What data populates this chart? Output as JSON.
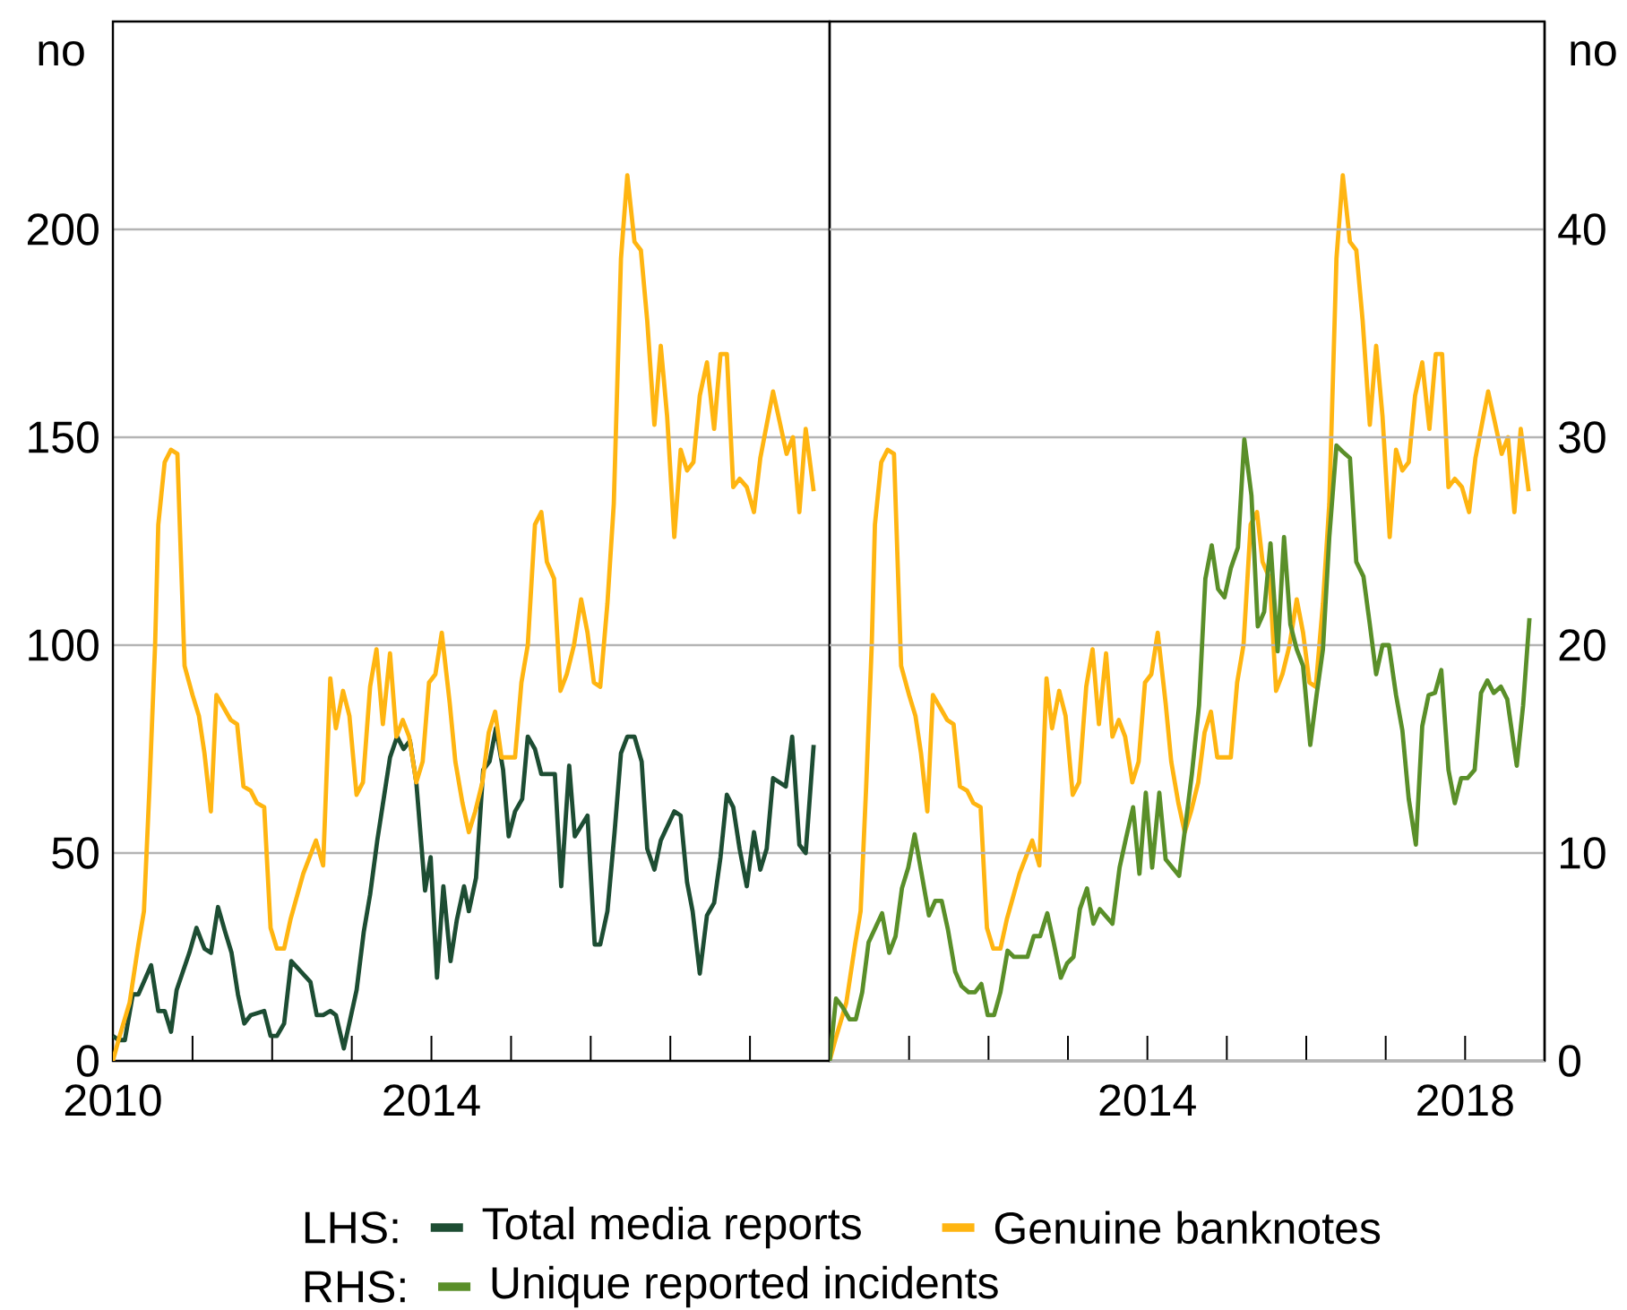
{
  "chart_data": [
    {
      "type": "line",
      "ylabel": "no",
      "legend_title": "LHS:",
      "legend": "bottom",
      "grid": "y",
      "xlim": [
        2010,
        2019
      ],
      "ylim": [
        0,
        250
      ],
      "yticks": [
        0,
        50,
        100,
        150,
        200
      ],
      "xticks": [
        2010,
        {
          "value": 2011,
          "label": null
        },
        {
          "value": 2012,
          "label": null
        },
        {
          "value": 2013,
          "label": null
        },
        2014,
        {
          "value": 2015,
          "label": null
        },
        {
          "value": 2016,
          "label": null
        },
        {
          "value": 2017,
          "label": null
        },
        {
          "value": 2018,
          "label": null
        }
      ],
      "series": [
        {
          "name": "Total media reports",
          "color": "#1d4d33",
          "x": [
            2010.0,
            2010.07,
            2010.15,
            2010.25,
            2010.32,
            2010.48,
            2010.57,
            2010.65,
            2010.73,
            2010.8,
            2010.96,
            2011.05,
            2011.15,
            2011.23,
            2011.32,
            2011.41,
            2011.49,
            2011.57,
            2011.65,
            2011.73,
            2011.9,
            2011.98,
            2012.06,
            2012.15,
            2012.24,
            2012.48,
            2012.56,
            2012.64,
            2012.73,
            2012.8,
            2012.9,
            2012.98,
            2013.06,
            2013.15,
            2013.23,
            2013.32,
            2013.4,
            2013.48,
            2013.57,
            2013.65,
            2013.73,
            2013.81,
            2013.92,
            2013.99,
            2014.07,
            2014.15,
            2014.24,
            2014.32,
            2014.41,
            2014.47,
            2014.56,
            2014.65,
            2014.73,
            2014.81,
            2014.9,
            2014.97,
            2015.05,
            2015.14,
            2015.21,
            2015.3,
            2015.38,
            2015.55,
            2015.63,
            2015.73,
            2015.8,
            2015.96,
            2016.05,
            2016.12,
            2016.21,
            2016.3,
            2016.38,
            2016.46,
            2016.55,
            2016.64,
            2016.71,
            2016.8,
            2016.88,
            2017.05,
            2017.13,
            2017.21,
            2017.28,
            2017.37,
            2017.46,
            2017.55,
            2017.63,
            2017.71,
            2017.79,
            2017.87,
            2017.96,
            2018.05,
            2018.13,
            2018.21,
            2018.29,
            2018.45,
            2018.53,
            2018.62,
            2018.7,
            2018.8
          ],
          "values": [
            6,
            5,
            5,
            16,
            16,
            23,
            12,
            12,
            7,
            17,
            26,
            32,
            27,
            26,
            37,
            31,
            26,
            16,
            9,
            11,
            12,
            6,
            6,
            9,
            24,
            19,
            11,
            11,
            12,
            11,
            3,
            10,
            17,
            31,
            40,
            53,
            63,
            73,
            78,
            75,
            77,
            67,
            41,
            49,
            20,
            42,
            24,
            34,
            42,
            36,
            44,
            70,
            72,
            80,
            70,
            54,
            60,
            63,
            78,
            75,
            69,
            69,
            42,
            71,
            54,
            59,
            28,
            28,
            36,
            55,
            74,
            78,
            78,
            72,
            51,
            46,
            53,
            60,
            59,
            43,
            36,
            21,
            35,
            38,
            49,
            64,
            61,
            51,
            42,
            55,
            46,
            51,
            68,
            66,
            78,
            52,
            50,
            76
          ]
        },
        {
          "name": "Genuine banknotes",
          "color": "#ffb511",
          "x": [
            2010.0,
            2010.07,
            2010.21,
            2010.32,
            2010.39,
            2010.46,
            2010.53,
            2010.57,
            2010.65,
            2010.73,
            2010.81,
            2010.9,
            2011.0,
            2011.08,
            2011.15,
            2011.23,
            2011.3,
            2011.39,
            2011.48,
            2011.56,
            2011.64,
            2011.73,
            2011.81,
            2011.9,
            2011.98,
            2012.06,
            2012.15,
            2012.23,
            2012.39,
            2012.55,
            2012.64,
            2012.73,
            2012.8,
            2012.89,
            2012.97,
            2013.06,
            2013.14,
            2013.23,
            2013.31,
            2013.39,
            2013.48,
            2013.56,
            2013.64,
            2013.72,
            2013.81,
            2013.89,
            2013.97,
            2014.05,
            2014.13,
            2014.23,
            2014.3,
            2014.39,
            2014.47,
            2014.55,
            2014.64,
            2014.72,
            2014.8,
            2014.88,
            2014.96,
            2015.05,
            2015.13,
            2015.21,
            2015.3,
            2015.38,
            2015.45,
            2015.54,
            2015.62,
            2015.7,
            2015.79,
            2015.88,
            2015.96,
            2016.04,
            2016.12,
            2016.21,
            2016.29,
            2016.38,
            2016.46,
            2016.55,
            2016.63,
            2016.71,
            2016.8,
            2016.88,
            2016.96,
            2017.05,
            2017.13,
            2017.21,
            2017.29,
            2017.37,
            2017.46,
            2017.55,
            2017.63,
            2017.71,
            2017.79,
            2017.87,
            2017.96,
            2018.05,
            2018.13,
            2018.21,
            2018.29,
            2018.37,
            2018.46,
            2018.54,
            2018.62,
            2018.7,
            2018.8
          ],
          "values": [
            0,
            5,
            14,
            28,
            36,
            66,
            100,
            129,
            144,
            147,
            146,
            95,
            88,
            83,
            74,
            60,
            88,
            85,
            82,
            81,
            66,
            65,
            62,
            61,
            32,
            27,
            27,
            34,
            45,
            53,
            47,
            92,
            80,
            89,
            83,
            64,
            67,
            90,
            99,
            81,
            98,
            78,
            82,
            78,
            67,
            72,
            91,
            93,
            103,
            86,
            72,
            62,
            55,
            60,
            67,
            79,
            84,
            73,
            73,
            73,
            91,
            100,
            129,
            132,
            120,
            116,
            89,
            93,
            100,
            111,
            103,
            91,
            90,
            110,
            134,
            193,
            213,
            197,
            195,
            178,
            153,
            172,
            155,
            126,
            147,
            142,
            144,
            160,
            168,
            152,
            170,
            170,
            138,
            140,
            138,
            132,
            145,
            153,
            161,
            154,
            146,
            150,
            132,
            152,
            137
          ]
        }
      ]
    },
    {
      "type": "line",
      "y2label": "no",
      "legend_title": "RHS:",
      "legend": "bottom",
      "grid": "y",
      "xlim": [
        2010,
        2019
      ],
      "ylim": [
        0,
        250
      ],
      "y2lim": [
        0,
        50
      ],
      "y2ticks": [
        0,
        10,
        20,
        30,
        40
      ],
      "xticks": [
        {
          "value": 2010,
          "label": null
        },
        {
          "value": 2011,
          "label": null
        },
        {
          "value": 2012,
          "label": null
        },
        {
          "value": 2013,
          "label": null
        },
        2014,
        {
          "value": 2015,
          "label": null
        },
        {
          "value": 2016,
          "label": null
        },
        {
          "value": 2017,
          "label": null
        },
        2018
      ],
      "series": [
        {
          "color": "#ffb511",
          "x": [
            2010.0,
            2010.07,
            2010.21,
            2010.32,
            2010.39,
            2010.46,
            2010.53,
            2010.57,
            2010.65,
            2010.73,
            2010.81,
            2010.9,
            2011.0,
            2011.08,
            2011.15,
            2011.23,
            2011.3,
            2011.39,
            2011.48,
            2011.56,
            2011.64,
            2011.73,
            2011.81,
            2011.9,
            2011.98,
            2012.06,
            2012.15,
            2012.23,
            2012.39,
            2012.55,
            2012.64,
            2012.73,
            2012.8,
            2012.89,
            2012.97,
            2013.06,
            2013.14,
            2013.23,
            2013.31,
            2013.39,
            2013.48,
            2013.56,
            2013.64,
            2013.72,
            2013.81,
            2013.89,
            2013.97,
            2014.05,
            2014.13,
            2014.23,
            2014.3,
            2014.39,
            2014.47,
            2014.55,
            2014.64,
            2014.72,
            2014.8,
            2014.88,
            2014.96,
            2015.05,
            2015.13,
            2015.21,
            2015.3,
            2015.38,
            2015.45,
            2015.54,
            2015.62,
            2015.7,
            2015.79,
            2015.88,
            2015.96,
            2016.04,
            2016.12,
            2016.21,
            2016.29,
            2016.38,
            2016.46,
            2016.55,
            2016.63,
            2016.71,
            2016.8,
            2016.88,
            2016.96,
            2017.05,
            2017.13,
            2017.21,
            2017.29,
            2017.37,
            2017.46,
            2017.55,
            2017.63,
            2017.71,
            2017.79,
            2017.87,
            2017.96,
            2018.05,
            2018.13,
            2018.21,
            2018.29,
            2018.37,
            2018.46,
            2018.54,
            2018.62,
            2018.7,
            2018.8
          ],
          "values": [
            0,
            5,
            14,
            28,
            36,
            66,
            100,
            129,
            144,
            147,
            146,
            95,
            88,
            83,
            74,
            60,
            88,
            85,
            82,
            81,
            66,
            65,
            62,
            61,
            32,
            27,
            27,
            34,
            45,
            53,
            47,
            92,
            80,
            89,
            83,
            64,
            67,
            90,
            99,
            81,
            98,
            78,
            82,
            78,
            67,
            72,
            91,
            93,
            103,
            86,
            72,
            62,
            55,
            60,
            67,
            79,
            84,
            73,
            73,
            73,
            91,
            100,
            129,
            132,
            120,
            116,
            89,
            93,
            100,
            111,
            103,
            91,
            90,
            110,
            134,
            193,
            213,
            197,
            195,
            178,
            153,
            172,
            155,
            126,
            147,
            142,
            144,
            160,
            168,
            152,
            170,
            170,
            138,
            140,
            138,
            132,
            145,
            153,
            161,
            154,
            146,
            150,
            132,
            152,
            137
          ]
        },
        {
          "name": "Unique reported incidents",
          "color": "#5a8f29",
          "axis": "y2",
          "x": [
            2010.0,
            2010.08,
            2010.16,
            2010.25,
            2010.33,
            2010.41,
            2010.49,
            2010.66,
            2010.75,
            2010.83,
            2010.91,
            2010.99,
            2011.07,
            2011.25,
            2011.33,
            2011.41,
            2011.49,
            2011.58,
            2011.66,
            2011.75,
            2011.83,
            2011.91,
            2011.99,
            2012.07,
            2012.15,
            2012.24,
            2012.32,
            2012.49,
            2012.57,
            2012.65,
            2012.74,
            2012.82,
            2012.91,
            2012.99,
            2013.07,
            2013.15,
            2013.24,
            2013.32,
            2013.4,
            2013.56,
            2013.65,
            2013.73,
            2013.82,
            2013.9,
            2013.98,
            2014.06,
            2014.15,
            2014.23,
            2014.4,
            2014.56,
            2014.65,
            2014.73,
            2014.81,
            2014.89,
            2014.97,
            2015.05,
            2015.14,
            2015.22,
            2015.31,
            2015.39,
            2015.47,
            2015.55,
            2015.64,
            2015.72,
            2015.8,
            2015.88,
            2015.96,
            2016.05,
            2016.13,
            2016.21,
            2016.29,
            2016.38,
            2016.46,
            2016.55,
            2016.63,
            2016.72,
            2016.8,
            2016.88,
            2016.96,
            2017.04,
            2017.13,
            2017.21,
            2017.29,
            2017.38,
            2017.46,
            2017.54,
            2017.62,
            2017.7,
            2017.79,
            2017.87,
            2017.95,
            2018.03,
            2018.12,
            2018.2,
            2018.28,
            2018.36,
            2018.45,
            2018.53,
            2018.65,
            2018.73,
            2018.81
          ],
          "values": [
            0,
            3.0,
            2.6,
            2.0,
            2.0,
            3.3,
            5.7,
            7.1,
            5.2,
            6.0,
            8.3,
            9.3,
            10.9,
            7.0,
            7.7,
            7.7,
            6.3,
            4.3,
            3.6,
            3.3,
            3.3,
            3.7,
            2.2,
            2.2,
            3.3,
            5.3,
            5.0,
            5.0,
            6.0,
            6.0,
            7.1,
            5.7,
            4.0,
            4.7,
            5.0,
            7.3,
            8.3,
            6.6,
            7.3,
            6.6,
            9.3,
            10.7,
            12.2,
            9.0,
            12.9,
            9.3,
            12.9,
            9.7,
            8.9,
            13.8,
            17.1,
            23.2,
            24.8,
            22.7,
            22.3,
            23.7,
            24.7,
            29.9,
            27.2,
            20.9,
            21.6,
            24.9,
            19.7,
            25.2,
            21.0,
            19.8,
            19.0,
            15.2,
            17.6,
            19.8,
            25.2,
            29.6,
            29.3,
            29.0,
            24.0,
            23.3,
            21.0,
            18.6,
            20.0,
            20.0,
            17.6,
            15.9,
            12.6,
            10.4,
            16.1,
            17.6,
            17.7,
            18.8,
            14.0,
            12.4,
            13.6,
            13.6,
            14.0,
            17.7,
            18.3,
            17.7,
            18.0,
            17.4,
            14.2,
            17.1,
            21.3
          ]
        }
      ]
    }
  ]
}
